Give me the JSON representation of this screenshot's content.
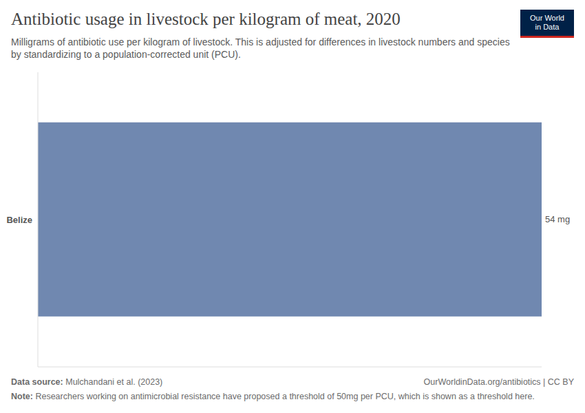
{
  "chart_data": {
    "type": "bar",
    "orientation": "horizontal",
    "title": "Antibiotic usage in livestock per kilogram of meat, 2020",
    "subtitle": "Milligrams of antibiotic use per kilogram of livestock. This is adjusted for differences in livestock numbers and species by standardizing to a population-corrected unit (PCU).",
    "categories": [
      "Belize"
    ],
    "values": [
      54
    ],
    "value_labels": [
      "54 mg"
    ],
    "data_labels": true,
    "color": "#7088b0",
    "xlim": [
      0,
      54
    ],
    "xticks": [],
    "tick_labels": "y",
    "grid": false,
    "logo": [
      "Our World",
      "in Data"
    ],
    "source_label": "Data source:",
    "source": "Mulchandani et al. (2023)",
    "credit": "OurWorldinData.org/antibiotics | CC BY",
    "note_label": "Note:",
    "note": "Researchers working on antimicrobial resistance have proposed a threshold of 50mg per PCU, which is shown as a threshold here."
  }
}
